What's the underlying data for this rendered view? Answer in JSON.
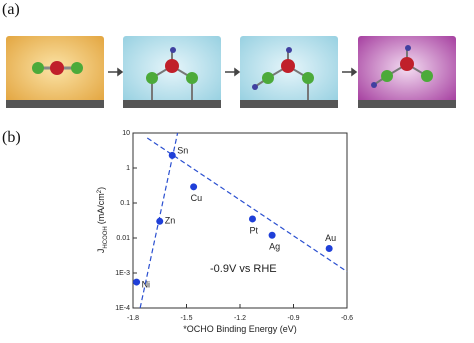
{
  "panel_a_label": "(a)",
  "panel_b_label": "(b)",
  "chart_data": {
    "type": "scatter",
    "x_label": "*OCHO Binding Energy (eV)",
    "y_label": {
      "main": "J",
      "sub": "HCOOH",
      "unit": "(mA/cm",
      "sup": "2",
      "end": ")"
    },
    "annotation": "-0.9V vs RHE",
    "log_y": true,
    "xlim": [
      -1.8,
      -0.6
    ],
    "xticks": [
      -1.8,
      -1.5,
      -1.2,
      -0.9,
      -0.6
    ],
    "ylim": [
      0.0001,
      10
    ],
    "yticks": [
      {
        "value": 0.0001,
        "label": "1E-4"
      },
      {
        "value": 0.001,
        "label": "1E-3"
      },
      0.01,
      0.1,
      1,
      10
    ],
    "series": [
      {
        "color": "#1f3fd8",
        "labels": [
          "Ni",
          "Zn",
          "Sn",
          "Cu",
          "Pt",
          "Ag",
          "Au"
        ],
        "x": [
          -1.78,
          -1.65,
          -1.58,
          -1.46,
          -1.13,
          -1.02,
          -0.7
        ],
        "values": [
          0.00055,
          0.03,
          2.3,
          0.29,
          0.035,
          0.012,
          0.005
        ]
      }
    ],
    "trend_lines": [
      {
        "color": "#2a4fd0",
        "x": [
          -1.76,
          -1.55
        ],
        "values": [
          0.0001,
          10
        ]
      },
      {
        "color": "#2a4fd0",
        "x": [
          -1.72,
          -0.6
        ],
        "values": [
          7.2,
          0.0011
        ]
      }
    ]
  }
}
